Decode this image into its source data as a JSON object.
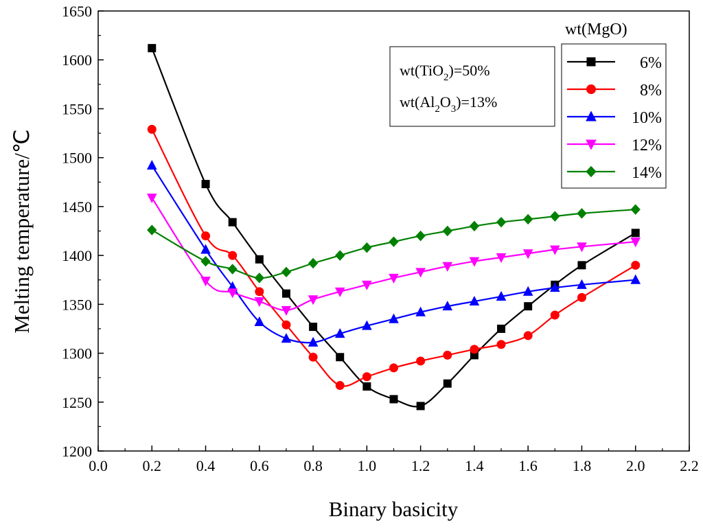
{
  "chart_data": {
    "type": "line",
    "xlabel": "Binary basicity",
    "ylabel": "Melting temperature/℃",
    "xlim": [
      0.0,
      2.2
    ],
    "ylim": [
      1200,
      1650
    ],
    "x_ticks": [
      "0.0",
      "0.2",
      "0.4",
      "0.6",
      "0.8",
      "1.0",
      "1.2",
      "1.4",
      "1.6",
      "1.8",
      "2.0",
      "2.2"
    ],
    "y_ticks": [
      "1200",
      "1250",
      "1300",
      "1350",
      "1400",
      "1450",
      "1500",
      "1550",
      "1600",
      "1650"
    ],
    "grid": false,
    "legend_title": "wt(MgO)",
    "legend_position": "top-right",
    "annotations": {
      "tio2": {
        "prefix": "wt(TiO",
        "sub": "2",
        "suffix": ")=50%"
      },
      "al2o3": {
        "prefix": "wt(Al",
        "sub1": "2",
        "mid": "O",
        "sub2": "3",
        "suffix": ")=13%"
      }
    },
    "series": [
      {
        "name": "6%",
        "color": "#000000",
        "marker": "square",
        "x": [
          0.2,
          0.4,
          0.5,
          0.6,
          0.7,
          0.8,
          0.9,
          1.0,
          1.1,
          1.2,
          1.3,
          1.4,
          1.5,
          1.6,
          1.7,
          1.8,
          2.0
        ],
        "y": [
          1612,
          1473,
          1434,
          1396,
          1361,
          1327,
          1296,
          1266,
          1253,
          1246,
          1269,
          1298,
          1325,
          1348,
          1370,
          1390,
          1423
        ]
      },
      {
        "name": "8%",
        "color": "#ff0000",
        "marker": "circle",
        "x": [
          0.2,
          0.4,
          0.5,
          0.6,
          0.7,
          0.8,
          0.9,
          1.0,
          1.1,
          1.2,
          1.3,
          1.4,
          1.5,
          1.6,
          1.7,
          1.8,
          2.0
        ],
        "y": [
          1529,
          1420,
          1400,
          1363,
          1329,
          1296,
          1267,
          1276,
          1285,
          1292,
          1298,
          1304,
          1309,
          1318,
          1339,
          1357,
          1390
        ]
      },
      {
        "name": "10%",
        "color": "#0000ff",
        "marker": "triangle-up",
        "x": [
          0.2,
          0.4,
          0.5,
          0.6,
          0.7,
          0.8,
          0.9,
          1.0,
          1.1,
          1.2,
          1.3,
          1.4,
          1.5,
          1.6,
          1.7,
          1.8,
          2.0
        ],
        "y": [
          1492,
          1406,
          1368,
          1332,
          1315,
          1311,
          1320,
          1328,
          1335,
          1342,
          1348,
          1353,
          1358,
          1363,
          1367,
          1370,
          1375
        ]
      },
      {
        "name": "12%",
        "color": "#ff00ff",
        "marker": "triangle-down",
        "x": [
          0.2,
          0.4,
          0.5,
          0.6,
          0.7,
          0.8,
          0.9,
          1.0,
          1.1,
          1.2,
          1.3,
          1.4,
          1.5,
          1.6,
          1.7,
          1.8,
          2.0
        ],
        "y": [
          1459,
          1374,
          1362,
          1353,
          1344,
          1355,
          1363,
          1370,
          1377,
          1383,
          1389,
          1394,
          1398,
          1402,
          1406,
          1409,
          1414
        ]
      },
      {
        "name": "14%",
        "color": "#008000",
        "marker": "diamond",
        "x": [
          0.2,
          0.4,
          0.5,
          0.6,
          0.7,
          0.8,
          0.9,
          1.0,
          1.1,
          1.2,
          1.3,
          1.4,
          1.5,
          1.6,
          1.7,
          1.8,
          2.0
        ],
        "y": [
          1426,
          1394,
          1386,
          1377,
          1383,
          1392,
          1400,
          1408,
          1414,
          1420,
          1425,
          1430,
          1434,
          1437,
          1440,
          1443,
          1447
        ]
      }
    ]
  }
}
